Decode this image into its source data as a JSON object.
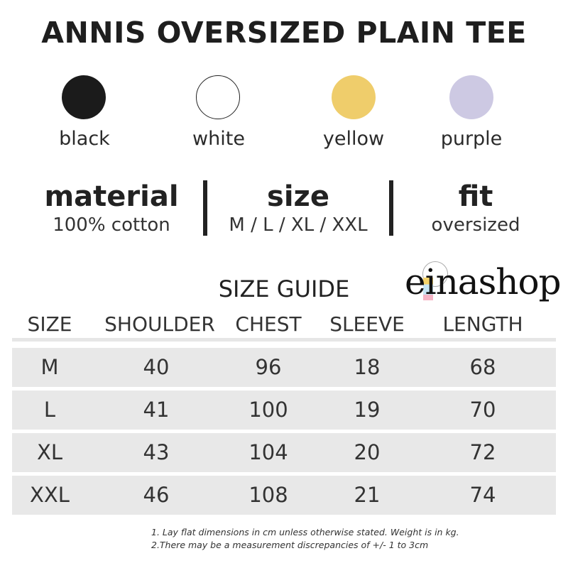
{
  "title": "ANNIS OVERSIZED PLAIN TEE",
  "colors": [
    {
      "label": "black",
      "hex": "#1b1b1b"
    },
    {
      "label": "white",
      "hex": "#ffffff"
    },
    {
      "label": "yellow",
      "hex": "#efcd6b"
    },
    {
      "label": "purple",
      "hex": "#cdc9e3"
    }
  ],
  "specs": [
    {
      "heading": "material",
      "value": "100% cotton"
    },
    {
      "heading": "size",
      "value": "M / L / XL / XXL"
    },
    {
      "heading": "fit",
      "value": "oversized"
    }
  ],
  "size_guide": {
    "title": "SIZE GUIDE",
    "columns": [
      "SIZE",
      "SHOULDER",
      "CHEST",
      "SLEEVE",
      "LENGTH"
    ],
    "rows": [
      [
        "M",
        "40",
        "96",
        "18",
        "68"
      ],
      [
        "L",
        "41",
        "100",
        "19",
        "70"
      ],
      [
        "XL",
        "43",
        "104",
        "20",
        "72"
      ],
      [
        "XXL",
        "46",
        "108",
        "21",
        "74"
      ]
    ]
  },
  "logo": "einashop",
  "notes": [
    "1. Lay flat dimensions in cm unless otherwise stated. Weight is in kg.",
    "2.There may be a measurement discrepancies of +/- 1 to 3cm"
  ]
}
